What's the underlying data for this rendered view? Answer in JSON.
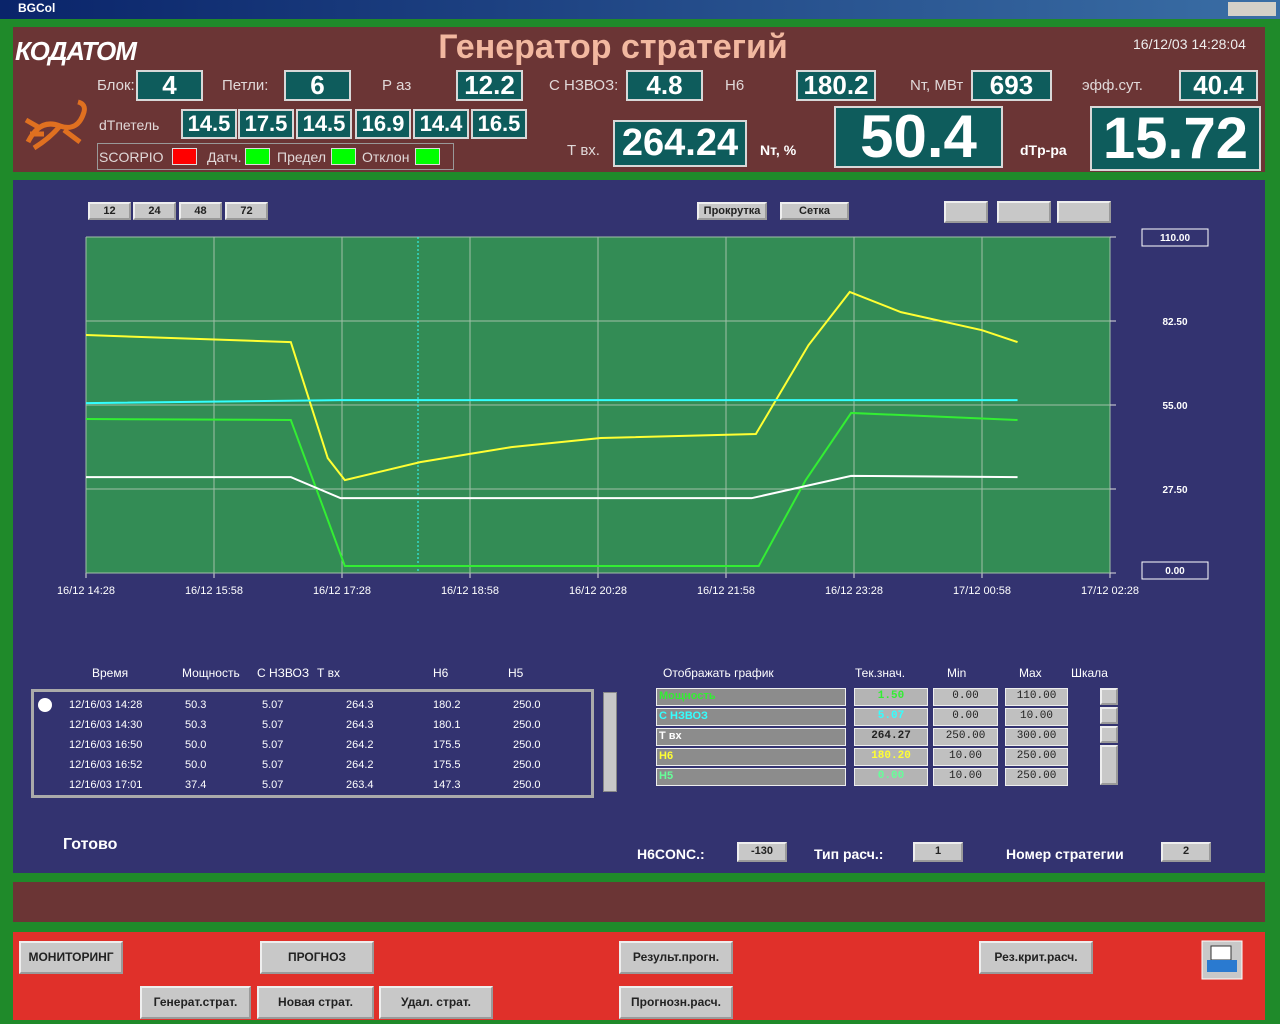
{
  "window": {
    "title": "BGCol"
  },
  "header": {
    "logo": "КОДАТОМ",
    "title": "Генератор стратегий",
    "datetime": "16/12/03 14:28:04",
    "fields": [
      {
        "label": "Блок:",
        "value": "4"
      },
      {
        "label": "Петли:",
        "value": "6"
      },
      {
        "label": "Р аз",
        "value": "12.2"
      },
      {
        "label": "С НЗВОЗ:",
        "value": "4.8"
      },
      {
        "label": "Н6",
        "value": "180.2"
      },
      {
        "label": "Nт, МВт",
        "value": "693"
      },
      {
        "label": "эфф.сут.",
        "value": "40.4"
      }
    ],
    "dt_loops": {
      "label": "dTпетель",
      "values": [
        "14.5",
        "17.5",
        "14.5",
        "16.9",
        "14.4",
        "16.5"
      ]
    },
    "indicators": [
      {
        "label": "SCORPIO",
        "color": "#ff0000"
      },
      {
        "label": "Датч.",
        "color": "#00ff00"
      },
      {
        "label": "Предел",
        "color": "#00ff00"
      },
      {
        "label": "Отклон",
        "color": "#00ff00"
      }
    ],
    "t_in": {
      "label": "Т вх.",
      "value": "264.24"
    },
    "nt_pct": {
      "label": "Nт, %",
      "value": "50.4"
    },
    "dt_pa": {
      "label": "dTp-pa",
      "value": "15.72"
    }
  },
  "chart_controls": {
    "periods": [
      "12",
      "24",
      "48",
      "72"
    ],
    "scroll": "Прокрутка",
    "grid": "Сетка"
  },
  "chart_data": {
    "type": "line",
    "grid": true,
    "xlim": [
      "16/12 14:28",
      "17/12 02:28"
    ],
    "xticks": [
      "16/12 14:28",
      "16/12 15:58",
      "16/12 17:28",
      "16/12 18:58",
      "16/12 20:28",
      "16/12 21:58",
      "16/12 23:28",
      "17/12 00:58",
      "17/12 02:28"
    ],
    "ylim": [
      0,
      110
    ],
    "yticks": [
      {
        "value": 0,
        "label": "0.00"
      },
      {
        "value": 27.5,
        "label": "27.50"
      },
      {
        "value": 55,
        "label": "55.00"
      },
      {
        "value": 82.5,
        "label": "82.50"
      },
      {
        "value": 110,
        "label": "110.00"
      }
    ],
    "series": [
      {
        "color": "#ffff33",
        "x": [
          "16/12 14:28",
          "16/12 16:52",
          "16/12 17:18",
          "16/12 17:30",
          "16/12 18:23",
          "16/12 18:58",
          "16/12 19:27",
          "16/12 20:30",
          "16/12 22:19",
          "16/12 22:56",
          "16/12 23:25",
          "17/12 00:01",
          "17/12 00:58",
          "17/12 01:23"
        ],
        "values": [
          77.9,
          75.6,
          37.6,
          30.4,
          36.3,
          39,
          41.2,
          44.2,
          45.5,
          74.6,
          92,
          85.4,
          79.5,
          75.6
        ]
      },
      {
        "color": "#33ee33",
        "x": [
          "16/12 14:28",
          "16/12 16:52",
          "16/12 17:30",
          "16/12 22:21",
          "16/12 22:54",
          "16/12 23:26",
          "17/12 01:23"
        ],
        "values": [
          50.4,
          50.1,
          2.3,
          2.3,
          30.4,
          52.4,
          50.1
        ]
      },
      {
        "color": "#33ffff",
        "x": [
          "16/12 14:28",
          "16/12 17:27",
          "17/12 01:23"
        ],
        "values": [
          55.6,
          56.6,
          56.6
        ]
      },
      {
        "color": "#ffffff",
        "x": [
          "16/12 14:28",
          "16/12 16:52",
          "16/12 17:27",
          "16/12 22:16",
          "16/12 23:26",
          "17/12 01:23"
        ],
        "values": [
          31.4,
          31.4,
          24.5,
          24.5,
          31.8,
          31.4
        ]
      }
    ]
  },
  "data_table": {
    "headers": [
      "Время",
      "Мощность",
      "С НЗВОЗ",
      "Т вх",
      "Н6",
      "Н5"
    ],
    "rows": [
      [
        "12/16/03 14:28",
        "50.3",
        "5.07",
        "264.3",
        "180.2",
        "250.0"
      ],
      [
        "12/16/03 14:30",
        "50.3",
        "5.07",
        "264.3",
        "180.1",
        "250.0"
      ],
      [
        "12/16/03 16:50",
        "50.0",
        "5.07",
        "264.2",
        "175.5",
        "250.0"
      ],
      [
        "12/16/03 16:52",
        "50.0",
        "5.07",
        "264.2",
        "175.5",
        "250.0"
      ],
      [
        "12/16/03 17:01",
        "37.4",
        "5.07",
        "263.4",
        "147.3",
        "250.0"
      ]
    ]
  },
  "graph_table": {
    "headers": [
      "Отображать график",
      "Тек.знач.",
      "Min",
      "Max",
      "Шкала"
    ],
    "rows": [
      {
        "name": "Мощность",
        "color": "#33ee33",
        "current": "1.50",
        "min": "0.00",
        "max": "110.00"
      },
      {
        "name": "С НЗВОЗ",
        "color": "#33ffff",
        "current": "5.07",
        "min": "0.00",
        "max": "10.00"
      },
      {
        "name": "Т вх",
        "color": "#ffffff",
        "current": "264.27",
        "min": "250.00",
        "max": "300.00"
      },
      {
        "name": "Н6",
        "color": "#ffff33",
        "current": "180.20",
        "min": "10.00",
        "max": "250.00"
      },
      {
        "name": "Н5",
        "color": "#66ff99",
        "current": "0.00",
        "min": "10.00",
        "max": "250.00"
      }
    ]
  },
  "status": "Готово",
  "params": [
    {
      "label": "H6CONC.:",
      "value": "-130"
    },
    {
      "label": "Тип расч.:",
      "value": "1"
    },
    {
      "label": "Номер стратегии",
      "value": "2"
    }
  ],
  "buttons": [
    "МОНИТОРИНГ",
    "ПРОГНОЗ",
    "Результ.прогн.",
    "Рез.крит.расч.",
    "Генерат.страт.",
    "Новая страт.",
    "Удал. страт.",
    "Прогнозн.расч."
  ]
}
